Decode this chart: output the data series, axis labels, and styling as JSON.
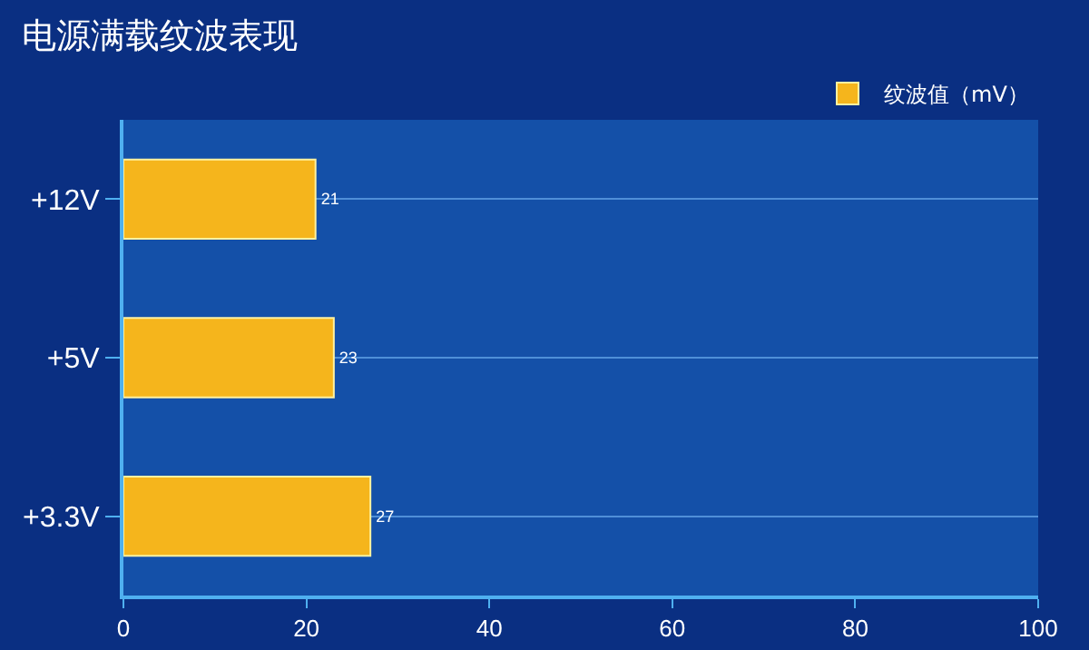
{
  "chart_data": {
    "type": "bar",
    "orientation": "horizontal",
    "title": "电源满载纹波表现",
    "categories": [
      "+12V",
      "+5V",
      "+3.3V"
    ],
    "series": [
      {
        "name": "纹波值（mV）",
        "color": "#f5b51c",
        "values": [
          21,
          23,
          27
        ]
      }
    ],
    "xlim": [
      0,
      100
    ],
    "xticks": [
      0,
      20,
      40,
      60,
      80,
      100
    ],
    "grid": "y",
    "legend": "top right",
    "data_labels": true
  }
}
